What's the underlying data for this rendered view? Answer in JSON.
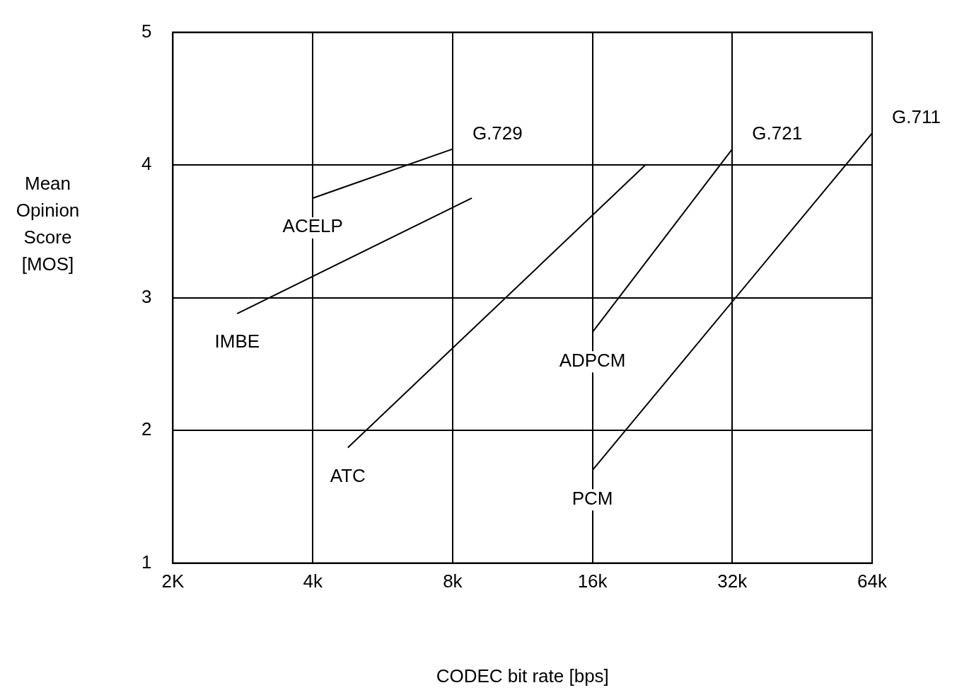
{
  "chart_data": {
    "type": "line",
    "xlabel": "CODEC bit rate [bps]",
    "ylabel": "Mean Opinion Score [MOS]",
    "log": "x",
    "xlim": [
      2000,
      64000
    ],
    "ylim": [
      1,
      5
    ],
    "xticks": [
      {
        "value": 2000,
        "label": "2K"
      },
      {
        "value": 4000,
        "label": "4k"
      },
      {
        "value": 8000,
        "label": "8k"
      },
      {
        "value": 16000,
        "label": "16k"
      },
      {
        "value": 32000,
        "label": "32k"
      },
      {
        "value": 64000,
        "label": "64k"
      }
    ],
    "yticks": [
      1,
      2,
      3,
      4,
      5
    ],
    "grid": true,
    "legend": false,
    "marker": "none",
    "line_style": "solid",
    "series": [
      {
        "name": "ACELP",
        "color": "#000000",
        "x": [
          4000,
          8000
        ],
        "values": [
          3.75,
          4.12
        ]
      },
      {
        "name": "IMBE",
        "color": "#000000",
        "x": [
          2750,
          8800
        ],
        "values": [
          2.88,
          3.75
        ]
      },
      {
        "name": "ATC",
        "color": "#000000",
        "x": [
          4760,
          20800
        ],
        "values": [
          1.87,
          4.0
        ]
      },
      {
        "name": "ADPCM",
        "color": "#000000",
        "x": [
          16000,
          32000
        ],
        "values": [
          2.74,
          4.12
        ]
      },
      {
        "name": "PCM",
        "color": "#000000",
        "x": [
          16000,
          64000
        ],
        "values": [
          1.7,
          4.24
        ]
      }
    ],
    "annotations": [
      {
        "text": "G.729",
        "x": 8000,
        "y": 4.12
      },
      {
        "text": "G.721",
        "x": 32000,
        "y": 4.12
      },
      {
        "text": "G.711",
        "x": 64000,
        "y": 4.24
      }
    ]
  }
}
